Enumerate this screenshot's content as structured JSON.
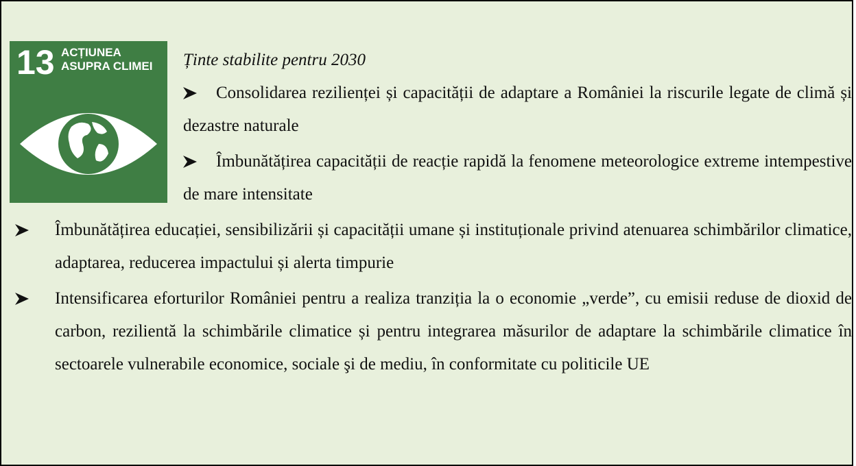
{
  "icon": {
    "number": "13",
    "label": [
      "ACȚIUNEA",
      "ASUPRA CLIMEI"
    ]
  },
  "heading": "Ținte stabilite pentru 2030",
  "bullets": [
    "Consolidarea rezilienței și capacității de adaptare a României la riscurile legate de climă și dezastre naturale",
    "Îmbunătățirea capacității de reacție rapidă la fenomene meteorologice extreme intempestive de mare intensitate",
    "Îmbunătățirea educației, sensibilizării și capacității umane și instituționale privind atenuarea schimbărilor climatice, adaptarea, reducerea impactului și alerta timpurie",
    "Intensificarea eforturilor României pentru a realiza tranziția la o economie „verde”, cu emisii reduse de dioxid de carbon, rezilientă la schimbările climatice și pentru integrarea măsurilor de adaptare la schimbările climatice în sectoarele vulnerabile economice, sociale şi de mediu, în conformitate cu politicile UE"
  ]
}
